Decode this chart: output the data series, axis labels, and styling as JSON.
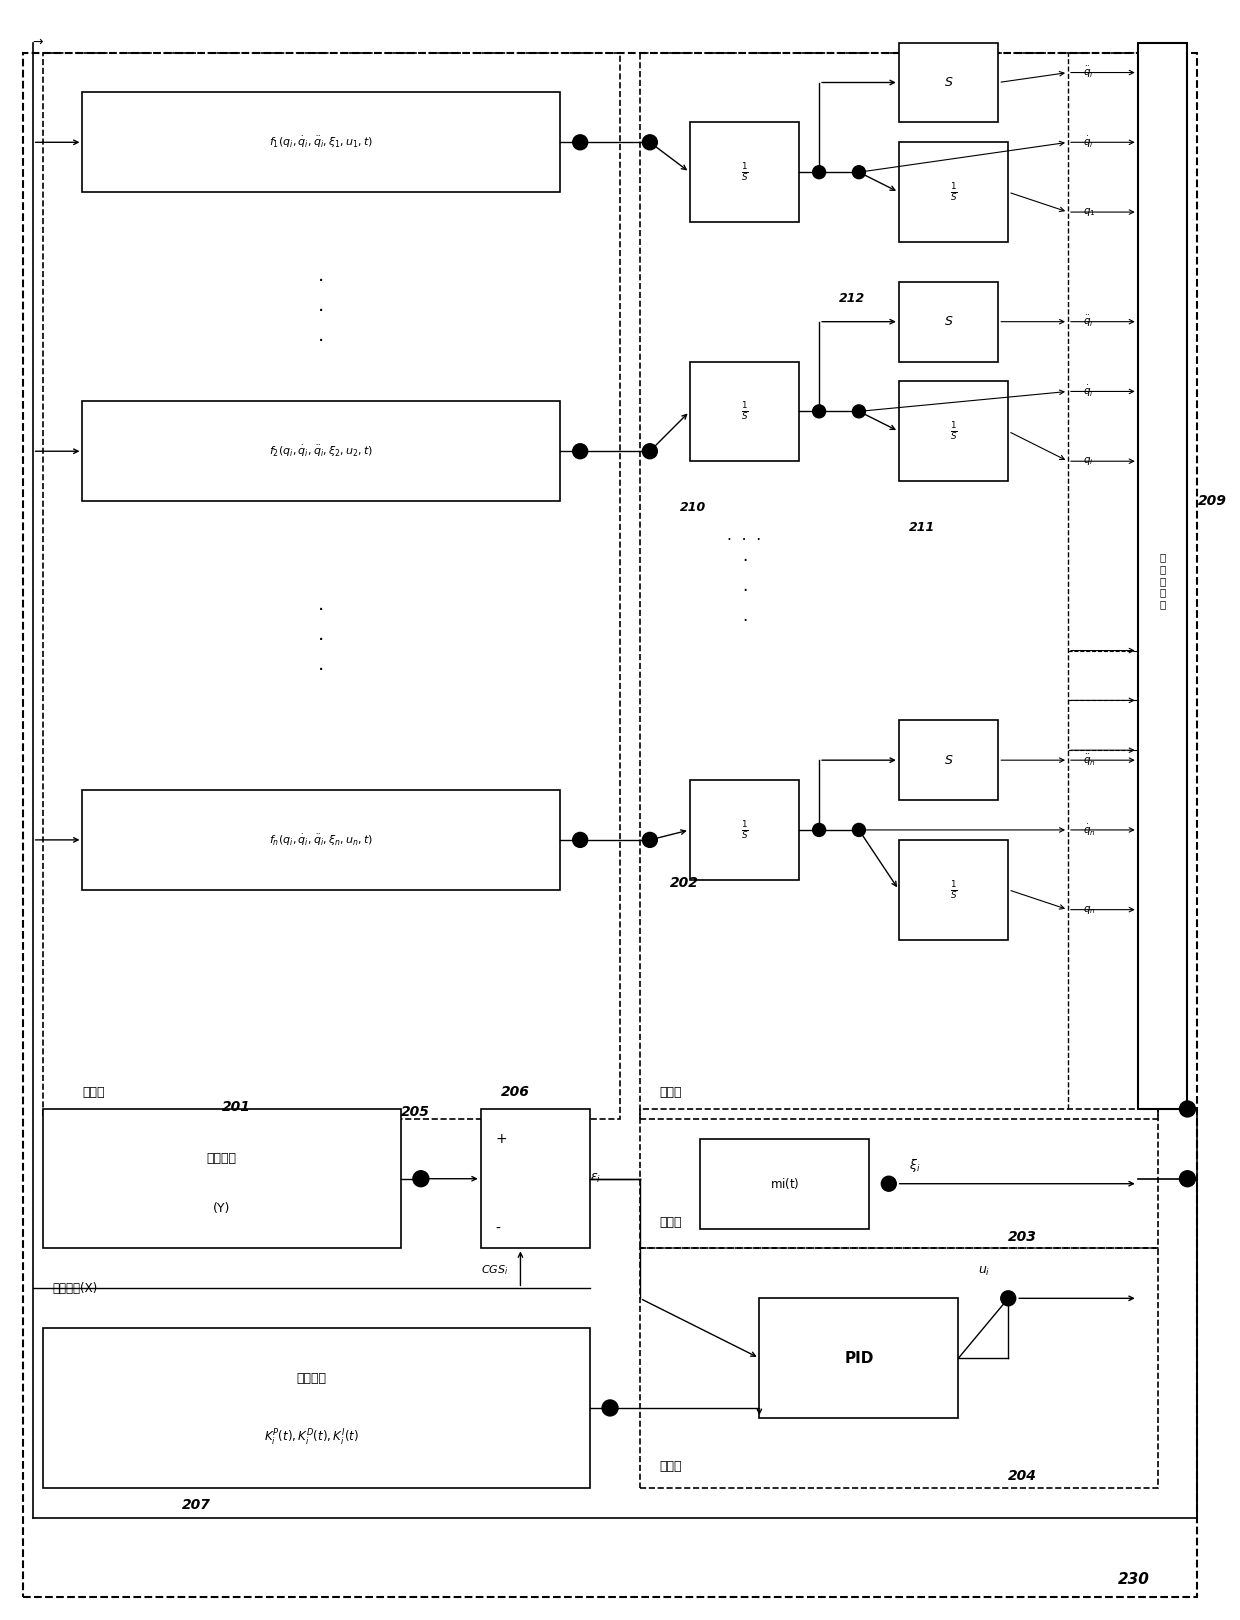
{
  "fig_width": 12.4,
  "fig_height": 16.2,
  "bg_color": "#ffffff",
  "lc": "#000000",
  "labels": {
    "201": "201",
    "202": "202",
    "203": "203",
    "204": "204",
    "205": "205",
    "206": "206",
    "207": "207",
    "209": "209",
    "210": "210",
    "211": "211",
    "212": "212",
    "230": "230"
  },
  "f1_text": "$f_1(q_i, \\dot{q}_i, \\ddot{q}_i, \\xi_1, u_1, t)$",
  "f2_text": "$f_2(q_i, \\dot{q}_i, \\ddot{q}_i, \\xi_2, u_2, t)$",
  "fn_text": "$f_n(q_i, \\dot{q}_i, \\ddot{q}_i, \\xi_n, u_n, t)$",
  "ref_line1": "参考信号",
  "ref_line2": "(Y)",
  "dev_out": "设备输出(X)",
  "gain_line1": "控制增益",
  "gain_line2": "$K^P_i(t), K^D_i(t), K^I_i(t)$",
  "eq_block": "方程块",
  "int_block": "积分块",
  "trig_block": "激发块",
  "ctrl_block": "控制块",
  "output_bar": "设\n备\n输\n出\n端",
  "mi_text": "mi(t)",
  "pid_text": "PID",
  "eps_text": "$\\varepsilon_i$",
  "cgs_text": "$CGS_i$",
  "xi_text": "$\\xi_i$",
  "ui_text": "$u_i$",
  "qddi1": "$\\ddot{q}_i$",
  "qdi1": "$\\dot{q}_i$",
  "qi1": "$q_1$",
  "qddi2": "$\\ddot{q}_i$",
  "qdi2": "$\\dot{q}_i$",
  "qi2": "$q_i$",
  "qddn": "$\\ddot{q}_n$",
  "qdn": "$\\dot{q}_n$",
  "qn": "$q_n$"
}
